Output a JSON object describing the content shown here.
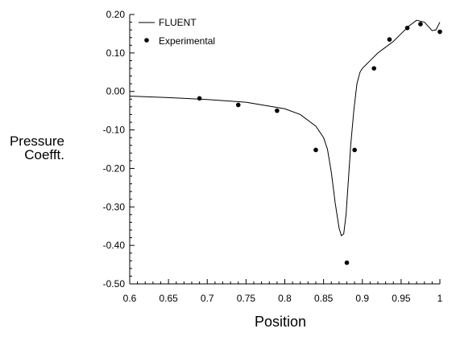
{
  "chart_data": {
    "type": "line",
    "xlabel": "Position",
    "ylabel_lines": [
      "Pressure",
      "Coefft."
    ],
    "xlim": [
      0.6,
      1.0
    ],
    "ylim": [
      -0.5,
      0.2
    ],
    "x_ticks": [
      "0.6",
      "0.65",
      "0.7",
      "0.75",
      "0.8",
      "0.85",
      "0.9",
      "0.95",
      "1"
    ],
    "y_ticks": [
      "0.20",
      "0.10",
      "0.00",
      "-0.10",
      "-0.20",
      "-0.30",
      "-0.40",
      "-0.50"
    ],
    "legend_position": "top-left",
    "grid": false,
    "series": [
      {
        "name": "FLUENT",
        "style": "line",
        "color": "#000000",
        "x": [
          0.6,
          0.65,
          0.7,
          0.75,
          0.8,
          0.82,
          0.84,
          0.85,
          0.855,
          0.86,
          0.865,
          0.87,
          0.873,
          0.876,
          0.879,
          0.882,
          0.885,
          0.889,
          0.893,
          0.897,
          0.9,
          0.905,
          0.91,
          0.92,
          0.93,
          0.94,
          0.95,
          0.96,
          0.97,
          0.98,
          0.99,
          0.995,
          1.0
        ],
        "y": [
          -0.012,
          -0.016,
          -0.021,
          -0.028,
          -0.045,
          -0.06,
          -0.09,
          -0.12,
          -0.15,
          -0.21,
          -0.29,
          -0.355,
          -0.375,
          -0.37,
          -0.32,
          -0.23,
          -0.14,
          -0.05,
          0.02,
          0.05,
          0.06,
          0.07,
          0.08,
          0.1,
          0.115,
          0.13,
          0.15,
          0.17,
          0.185,
          0.18,
          0.158,
          0.16,
          0.18
        ]
      },
      {
        "name": "Experimental",
        "style": "points",
        "color": "#000000",
        "x": [
          0.69,
          0.74,
          0.79,
          0.84,
          0.88,
          0.89,
          0.915,
          0.935,
          0.958,
          0.975,
          1.0
        ],
        "y": [
          -0.018,
          -0.035,
          -0.05,
          -0.152,
          -0.445,
          -0.152,
          0.06,
          0.135,
          0.165,
          0.175,
          0.155
        ]
      }
    ]
  }
}
